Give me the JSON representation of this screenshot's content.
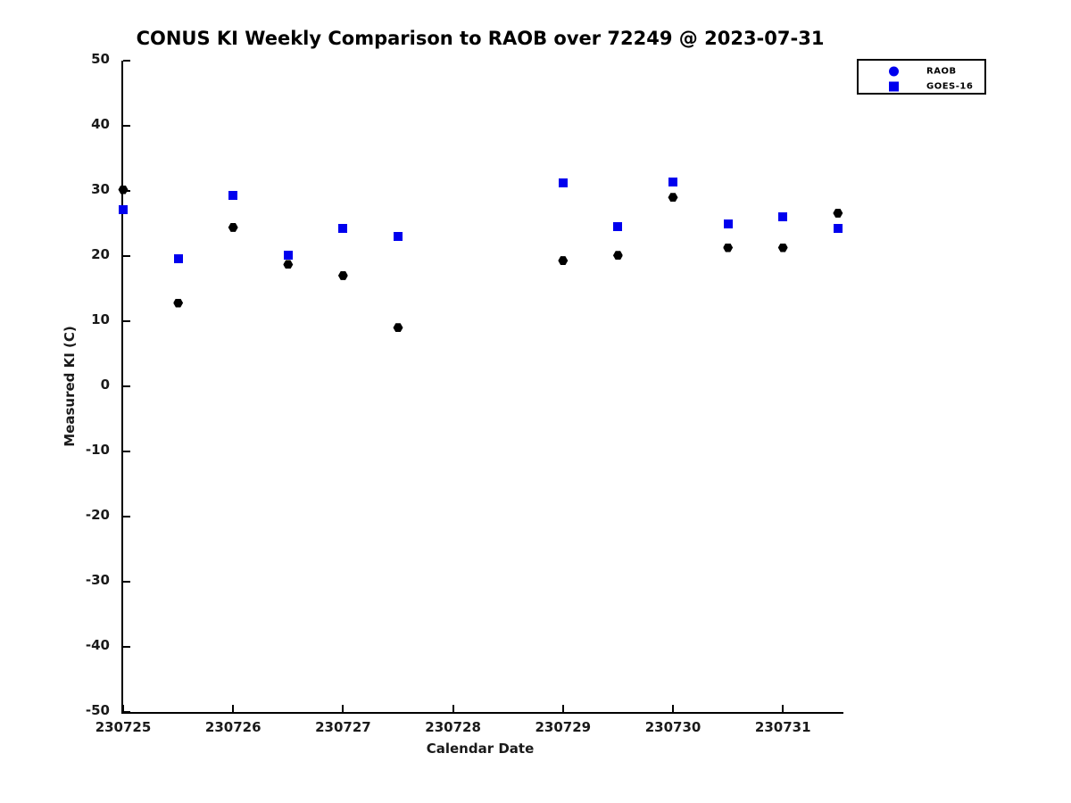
{
  "chart_data": {
    "type": "scatter",
    "title": "CONUS KI Weekly Comparison to RAOB over 72249 @ 2023-07-31",
    "xlabel": "Calendar Date",
    "ylabel": "Measured KI (C)",
    "xlim": [
      230725,
      230731.55
    ],
    "ylim": [
      -50,
      50
    ],
    "x_ticks": [
      "230725",
      "230726",
      "230727",
      "230728",
      "230729",
      "230730",
      "230731"
    ],
    "y_ticks": [
      "50",
      "40",
      "30",
      "20",
      "10",
      "0",
      "-10",
      "-20",
      "-30",
      "-40",
      "-50"
    ],
    "grid": false,
    "legend_position": "top-right-outside",
    "axis_color": "#000000",
    "series": [
      {
        "name": "RAOB",
        "marker": "hexagon",
        "color": "#000000",
        "legend_marker": "circle",
        "legend_color": "#0000ee",
        "points": [
          [
            230725.0,
            30.2
          ],
          [
            230725.5,
            12.8
          ],
          [
            230726.0,
            24.4
          ],
          [
            230726.5,
            18.7
          ],
          [
            230727.0,
            17.0
          ],
          [
            230727.5,
            9.0
          ],
          [
            230729.0,
            19.3
          ],
          [
            230729.5,
            20.1
          ],
          [
            230730.0,
            29.0
          ],
          [
            230730.5,
            21.3
          ],
          [
            230731.0,
            21.3
          ],
          [
            230731.5,
            26.6
          ]
        ]
      },
      {
        "name": "GOES-16",
        "marker": "square",
        "color": "#0000ee",
        "legend_marker": "square",
        "legend_color": "#0000ee",
        "points": [
          [
            230725.0,
            27.1
          ],
          [
            230725.5,
            19.6
          ],
          [
            230726.0,
            29.3
          ],
          [
            230726.5,
            20.2
          ],
          [
            230727.0,
            24.2
          ],
          [
            230727.5,
            23.0
          ],
          [
            230729.0,
            31.3
          ],
          [
            230729.5,
            24.5
          ],
          [
            230730.0,
            31.4
          ],
          [
            230730.5,
            25.0
          ],
          [
            230731.0,
            26.0
          ],
          [
            230731.5,
            24.2
          ]
        ]
      }
    ]
  }
}
